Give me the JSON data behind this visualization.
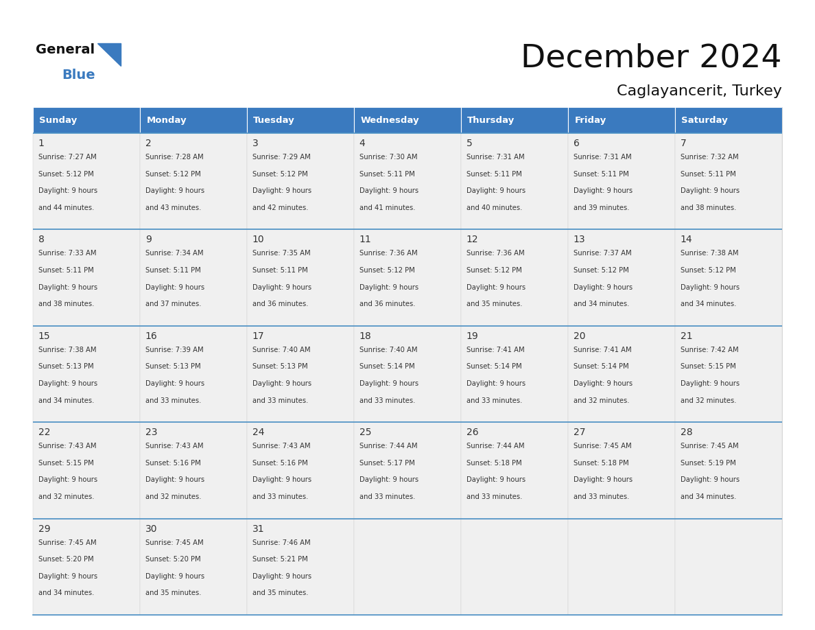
{
  "title": "December 2024",
  "subtitle": "Caglayancerit, Turkey",
  "header_color": "#3a7abf",
  "header_text_color": "#ffffff",
  "cell_bg_color": "#f0f0f0",
  "border_color": "#3a7abf",
  "sep_line_color": "#4a90c4",
  "title_color": "#111111",
  "text_color": "#333333",
  "day_headers": [
    "Sunday",
    "Monday",
    "Tuesday",
    "Wednesday",
    "Thursday",
    "Friday",
    "Saturday"
  ],
  "weeks": [
    [
      {
        "day": "1",
        "sunrise": "7:27 AM",
        "sunset": "5:12 PM",
        "daylight_hours": "9 hours",
        "daylight_minutes": "and 44 minutes."
      },
      {
        "day": "2",
        "sunrise": "7:28 AM",
        "sunset": "5:12 PM",
        "daylight_hours": "9 hours",
        "daylight_minutes": "and 43 minutes."
      },
      {
        "day": "3",
        "sunrise": "7:29 AM",
        "sunset": "5:12 PM",
        "daylight_hours": "9 hours",
        "daylight_minutes": "and 42 minutes."
      },
      {
        "day": "4",
        "sunrise": "7:30 AM",
        "sunset": "5:11 PM",
        "daylight_hours": "9 hours",
        "daylight_minutes": "and 41 minutes."
      },
      {
        "day": "5",
        "sunrise": "7:31 AM",
        "sunset": "5:11 PM",
        "daylight_hours": "9 hours",
        "daylight_minutes": "and 40 minutes."
      },
      {
        "day": "6",
        "sunrise": "7:31 AM",
        "sunset": "5:11 PM",
        "daylight_hours": "9 hours",
        "daylight_minutes": "and 39 minutes."
      },
      {
        "day": "7",
        "sunrise": "7:32 AM",
        "sunset": "5:11 PM",
        "daylight_hours": "9 hours",
        "daylight_minutes": "and 38 minutes."
      }
    ],
    [
      {
        "day": "8",
        "sunrise": "7:33 AM",
        "sunset": "5:11 PM",
        "daylight_hours": "9 hours",
        "daylight_minutes": "and 38 minutes."
      },
      {
        "day": "9",
        "sunrise": "7:34 AM",
        "sunset": "5:11 PM",
        "daylight_hours": "9 hours",
        "daylight_minutes": "and 37 minutes."
      },
      {
        "day": "10",
        "sunrise": "7:35 AM",
        "sunset": "5:11 PM",
        "daylight_hours": "9 hours",
        "daylight_minutes": "and 36 minutes."
      },
      {
        "day": "11",
        "sunrise": "7:36 AM",
        "sunset": "5:12 PM",
        "daylight_hours": "9 hours",
        "daylight_minutes": "and 36 minutes."
      },
      {
        "day": "12",
        "sunrise": "7:36 AM",
        "sunset": "5:12 PM",
        "daylight_hours": "9 hours",
        "daylight_minutes": "and 35 minutes."
      },
      {
        "day": "13",
        "sunrise": "7:37 AM",
        "sunset": "5:12 PM",
        "daylight_hours": "9 hours",
        "daylight_minutes": "and 34 minutes."
      },
      {
        "day": "14",
        "sunrise": "7:38 AM",
        "sunset": "5:12 PM",
        "daylight_hours": "9 hours",
        "daylight_minutes": "and 34 minutes."
      }
    ],
    [
      {
        "day": "15",
        "sunrise": "7:38 AM",
        "sunset": "5:13 PM",
        "daylight_hours": "9 hours",
        "daylight_minutes": "and 34 minutes."
      },
      {
        "day": "16",
        "sunrise": "7:39 AM",
        "sunset": "5:13 PM",
        "daylight_hours": "9 hours",
        "daylight_minutes": "and 33 minutes."
      },
      {
        "day": "17",
        "sunrise": "7:40 AM",
        "sunset": "5:13 PM",
        "daylight_hours": "9 hours",
        "daylight_minutes": "and 33 minutes."
      },
      {
        "day": "18",
        "sunrise": "7:40 AM",
        "sunset": "5:14 PM",
        "daylight_hours": "9 hours",
        "daylight_minutes": "and 33 minutes."
      },
      {
        "day": "19",
        "sunrise": "7:41 AM",
        "sunset": "5:14 PM",
        "daylight_hours": "9 hours",
        "daylight_minutes": "and 33 minutes."
      },
      {
        "day": "20",
        "sunrise": "7:41 AM",
        "sunset": "5:14 PM",
        "daylight_hours": "9 hours",
        "daylight_minutes": "and 32 minutes."
      },
      {
        "day": "21",
        "sunrise": "7:42 AM",
        "sunset": "5:15 PM",
        "daylight_hours": "9 hours",
        "daylight_minutes": "and 32 minutes."
      }
    ],
    [
      {
        "day": "22",
        "sunrise": "7:43 AM",
        "sunset": "5:15 PM",
        "daylight_hours": "9 hours",
        "daylight_minutes": "and 32 minutes."
      },
      {
        "day": "23",
        "sunrise": "7:43 AM",
        "sunset": "5:16 PM",
        "daylight_hours": "9 hours",
        "daylight_minutes": "and 32 minutes."
      },
      {
        "day": "24",
        "sunrise": "7:43 AM",
        "sunset": "5:16 PM",
        "daylight_hours": "9 hours",
        "daylight_minutes": "and 33 minutes."
      },
      {
        "day": "25",
        "sunrise": "7:44 AM",
        "sunset": "5:17 PM",
        "daylight_hours": "9 hours",
        "daylight_minutes": "and 33 minutes."
      },
      {
        "day": "26",
        "sunrise": "7:44 AM",
        "sunset": "5:18 PM",
        "daylight_hours": "9 hours",
        "daylight_minutes": "and 33 minutes."
      },
      {
        "day": "27",
        "sunrise": "7:45 AM",
        "sunset": "5:18 PM",
        "daylight_hours": "9 hours",
        "daylight_minutes": "and 33 minutes."
      },
      {
        "day": "28",
        "sunrise": "7:45 AM",
        "sunset": "5:19 PM",
        "daylight_hours": "9 hours",
        "daylight_minutes": "and 34 minutes."
      }
    ],
    [
      {
        "day": "29",
        "sunrise": "7:45 AM",
        "sunset": "5:20 PM",
        "daylight_hours": "9 hours",
        "daylight_minutes": "and 34 minutes."
      },
      {
        "day": "30",
        "sunrise": "7:45 AM",
        "sunset": "5:20 PM",
        "daylight_hours": "9 hours",
        "daylight_minutes": "and 35 minutes."
      },
      {
        "day": "31",
        "sunrise": "7:46 AM",
        "sunset": "5:21 PM",
        "daylight_hours": "9 hours",
        "daylight_minutes": "and 35 minutes."
      },
      null,
      null,
      null,
      null
    ]
  ]
}
